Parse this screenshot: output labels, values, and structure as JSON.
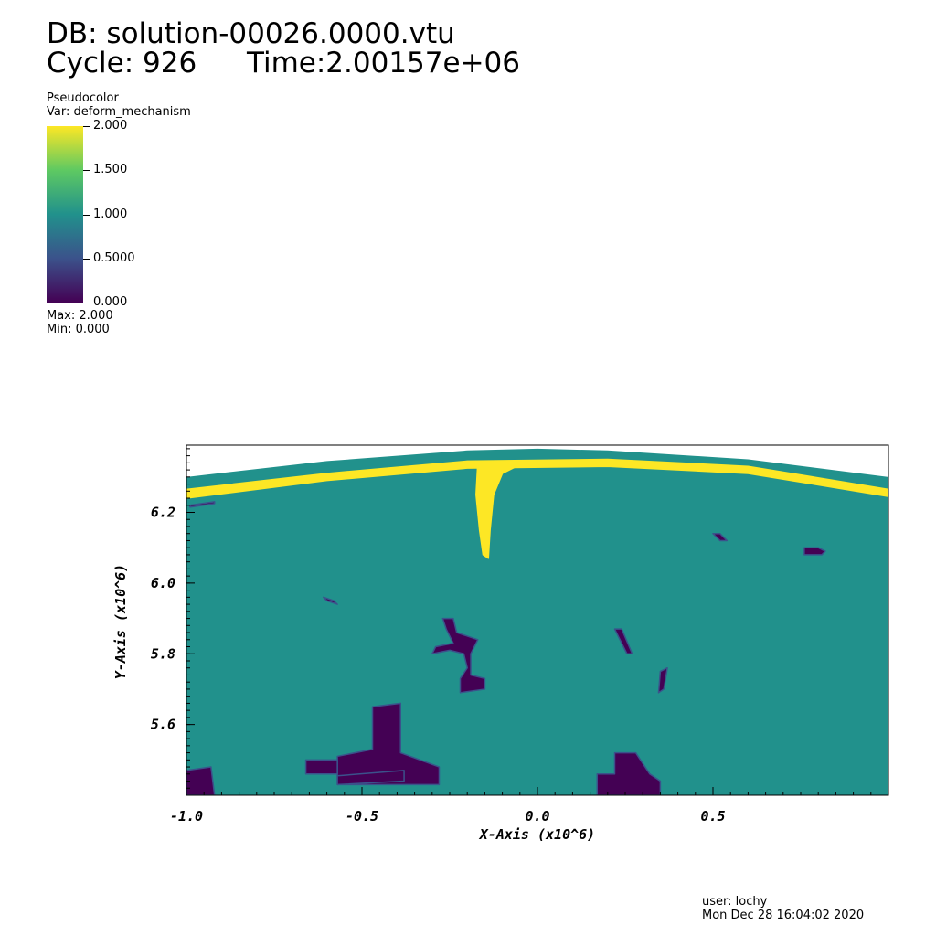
{
  "header": {
    "db": "DB: solution-00026.0000.vtu",
    "cycle": "Cycle: 926",
    "time": "Time:2.00157e+06"
  },
  "legend": {
    "plot_type": "Pseudocolor",
    "var": "Var: deform_mechanism",
    "ticks": [
      "2.000",
      "1.500",
      "1.000",
      "0.5000",
      "0.000"
    ],
    "max": "Max: 2.000",
    "min": "Min: 0.000",
    "colormap": [
      "#fde725",
      "#5ec962",
      "#21918c",
      "#3b528b",
      "#440154"
    ]
  },
  "footer": {
    "user": "user: lochy",
    "date": "Mon Dec 28 16:04:02 2020"
  },
  "chart_data": {
    "type": "heatmap",
    "title": "DB: solution-00026.0000.vtu",
    "variable": "deform_mechanism",
    "xlabel": "X-Axis (x10^6)",
    "ylabel": "Y-Axis (x10^6)",
    "xlim": [
      -1.0,
      1.0
    ],
    "ylim": [
      5.4,
      6.39
    ],
    "xticks": [
      -1.0,
      -0.5,
      0.0,
      0.5
    ],
    "xtick_labels": [
      "-1.0",
      "-0.5",
      "0.0",
      "0.5"
    ],
    "yticks": [
      5.6,
      5.8,
      6.0,
      6.2
    ],
    "ytick_labels": [
      "5.6",
      "5.8",
      "6.0",
      "6.2"
    ],
    "value_range": [
      0.0,
      2.0
    ],
    "background_value": 1.0,
    "colors": {
      "value_0": "#440154",
      "value_1": "#21918c",
      "value_2": "#fde725"
    },
    "regions": [
      {
        "value": 2.0,
        "feature": "surface band",
        "points": [
          [
            -1.0,
            6.265
          ],
          [
            -0.6,
            6.31
          ],
          [
            -0.2,
            6.345
          ],
          [
            0.2,
            6.35
          ],
          [
            0.6,
            6.33
          ],
          [
            1.0,
            6.265
          ],
          [
            1.0,
            6.245
          ],
          [
            0.6,
            6.31
          ],
          [
            0.2,
            6.33
          ],
          [
            -0.2,
            6.325
          ],
          [
            -0.6,
            6.29
          ],
          [
            -1.0,
            6.24
          ]
        ]
      },
      {
        "value": 2.0,
        "feature": "plume",
        "points": [
          [
            -0.17,
            6.34
          ],
          [
            -0.175,
            6.25
          ],
          [
            -0.165,
            6.15
          ],
          [
            -0.155,
            6.08
          ],
          [
            -0.14,
            6.07
          ],
          [
            -0.135,
            6.15
          ],
          [
            -0.125,
            6.25
          ],
          [
            -0.1,
            6.31
          ],
          [
            -0.05,
            6.335
          ],
          [
            -0.12,
            6.345
          ]
        ]
      },
      {
        "value": 0.0,
        "feature": "block",
        "points": [
          [
            -0.57,
            5.51
          ],
          [
            -0.47,
            5.53
          ],
          [
            -0.47,
            5.65
          ],
          [
            -0.39,
            5.66
          ],
          [
            -0.39,
            5.52
          ],
          [
            -0.28,
            5.48
          ],
          [
            -0.28,
            5.43
          ],
          [
            -0.57,
            5.43
          ]
        ]
      },
      {
        "value": 0.0,
        "feature": "block",
        "points": [
          [
            -0.66,
            5.5
          ],
          [
            -0.57,
            5.5
          ],
          [
            -0.57,
            5.46
          ],
          [
            -0.66,
            5.46
          ]
        ]
      },
      {
        "value": 0.0,
        "feature": "block",
        "points": [
          [
            -0.57,
            5.455
          ],
          [
            -0.38,
            5.47
          ],
          [
            -0.38,
            5.44
          ],
          [
            -0.57,
            5.43
          ]
        ]
      },
      {
        "value": 0.0,
        "feature": "block",
        "points": [
          [
            -1.0,
            5.47
          ],
          [
            -0.93,
            5.48
          ],
          [
            -0.92,
            5.4
          ],
          [
            -1.0,
            5.4
          ]
        ]
      },
      {
        "value": 0.0,
        "feature": "block",
        "points": [
          [
            0.17,
            5.46
          ],
          [
            0.22,
            5.46
          ],
          [
            0.22,
            5.52
          ],
          [
            0.28,
            5.52
          ],
          [
            0.32,
            5.46
          ],
          [
            0.35,
            5.44
          ],
          [
            0.35,
            5.4
          ],
          [
            0.17,
            5.4
          ]
        ]
      },
      {
        "value": 0.0,
        "feature": "dike",
        "points": [
          [
            -0.27,
            5.9
          ],
          [
            -0.24,
            5.9
          ],
          [
            -0.23,
            5.86
          ],
          [
            -0.2,
            5.85
          ],
          [
            -0.17,
            5.84
          ],
          [
            -0.19,
            5.8
          ],
          [
            -0.19,
            5.74
          ],
          [
            -0.15,
            5.73
          ],
          [
            -0.15,
            5.7
          ],
          [
            -0.22,
            5.69
          ],
          [
            -0.22,
            5.73
          ],
          [
            -0.2,
            5.76
          ],
          [
            -0.21,
            5.8
          ],
          [
            -0.25,
            5.81
          ],
          [
            -0.3,
            5.8
          ],
          [
            -0.29,
            5.82
          ],
          [
            -0.24,
            5.83
          ],
          [
            -0.26,
            5.87
          ]
        ]
      },
      {
        "value": 0.0,
        "feature": "streak",
        "points": [
          [
            0.35,
            5.75
          ],
          [
            0.37,
            5.76
          ],
          [
            0.36,
            5.7
          ],
          [
            0.345,
            5.69
          ]
        ]
      },
      {
        "value": 0.0,
        "feature": "streak",
        "points": [
          [
            0.22,
            5.87
          ],
          [
            0.24,
            5.87
          ],
          [
            0.27,
            5.8
          ],
          [
            0.255,
            5.8
          ]
        ]
      },
      {
        "value": 0.0,
        "feature": "streak",
        "points": [
          [
            0.76,
            6.1
          ],
          [
            0.8,
            6.1
          ],
          [
            0.82,
            6.09
          ],
          [
            0.81,
            6.08
          ],
          [
            0.76,
            6.08
          ]
        ]
      },
      {
        "value": 0.0,
        "feature": "streak",
        "points": [
          [
            0.5,
            6.14
          ],
          [
            0.52,
            6.14
          ],
          [
            0.54,
            6.12
          ],
          [
            0.52,
            6.12
          ]
        ]
      },
      {
        "value": 0.0,
        "feature": "streak",
        "points": [
          [
            -0.61,
            5.96
          ],
          [
            -0.58,
            5.95
          ],
          [
            -0.57,
            5.94
          ],
          [
            -0.6,
            5.95
          ]
        ]
      },
      {
        "value": 0.0,
        "feature": "streak",
        "points": [
          [
            -0.99,
            6.22
          ],
          [
            -0.92,
            6.23
          ],
          [
            -0.92,
            6.225
          ],
          [
            -0.99,
            6.215
          ]
        ]
      }
    ]
  }
}
